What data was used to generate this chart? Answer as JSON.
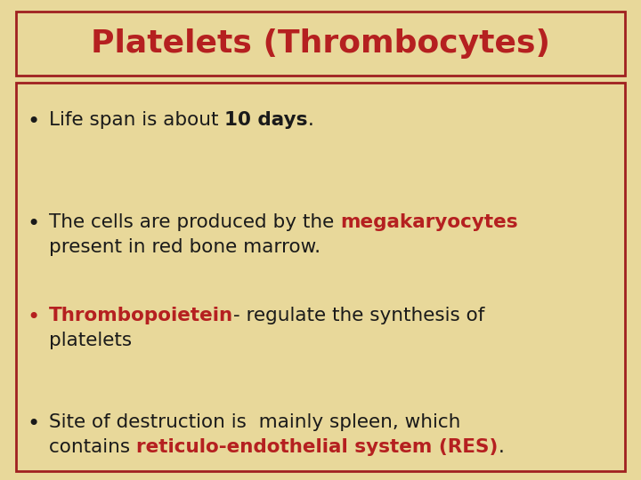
{
  "title": "Platelets (Thrombocytes)",
  "title_color": "#B52020",
  "background_color": "#E8D89A",
  "border_color": "#A02020",
  "text_color": "#1A1A1A",
  "highlight_color": "#B52020",
  "fig_width": 7.2,
  "fig_height": 5.4,
  "dpi": 100,
  "title_fontsize": 26,
  "body_fontsize": 15.5,
  "bullet_sections": [
    {
      "bullet_color": "#1A1A1A",
      "lines": [
        [
          {
            "text": "Life span is about ",
            "bold": false,
            "color": "#1A1A1A"
          },
          {
            "text": "10 days",
            "bold": true,
            "color": "#1A1A1A"
          },
          {
            "text": ".",
            "bold": false,
            "color": "#1A1A1A"
          }
        ]
      ]
    },
    {
      "bullet_color": "#1A1A1A",
      "lines": [
        [
          {
            "text": "The cells are produced by the ",
            "bold": false,
            "color": "#1A1A1A"
          },
          {
            "text": "megakaryocytes",
            "bold": true,
            "color": "#B52020"
          }
        ],
        [
          {
            "text": "present in red bone marrow.",
            "bold": false,
            "color": "#1A1A1A"
          }
        ]
      ]
    },
    {
      "bullet_color": "#B52020",
      "lines": [
        [
          {
            "text": "Thrombopoietein",
            "bold": true,
            "color": "#B52020"
          },
          {
            "text": "- regulate the synthesis of",
            "bold": false,
            "color": "#1A1A1A"
          }
        ],
        [
          {
            "text": "platelets",
            "bold": false,
            "color": "#1A1A1A"
          }
        ]
      ]
    },
    {
      "bullet_color": "#1A1A1A",
      "lines": [
        [
          {
            "text": "Site of destruction is  mainly spleen, which",
            "bold": false,
            "color": "#1A1A1A"
          }
        ],
        [
          {
            "text": "contains ",
            "bold": false,
            "color": "#1A1A1A"
          },
          {
            "text": "reticulo-endothelial system (RES)",
            "bold": true,
            "color": "#B52020"
          },
          {
            "text": ".",
            "bold": false,
            "color": "#1A1A1A"
          }
        ]
      ]
    }
  ]
}
